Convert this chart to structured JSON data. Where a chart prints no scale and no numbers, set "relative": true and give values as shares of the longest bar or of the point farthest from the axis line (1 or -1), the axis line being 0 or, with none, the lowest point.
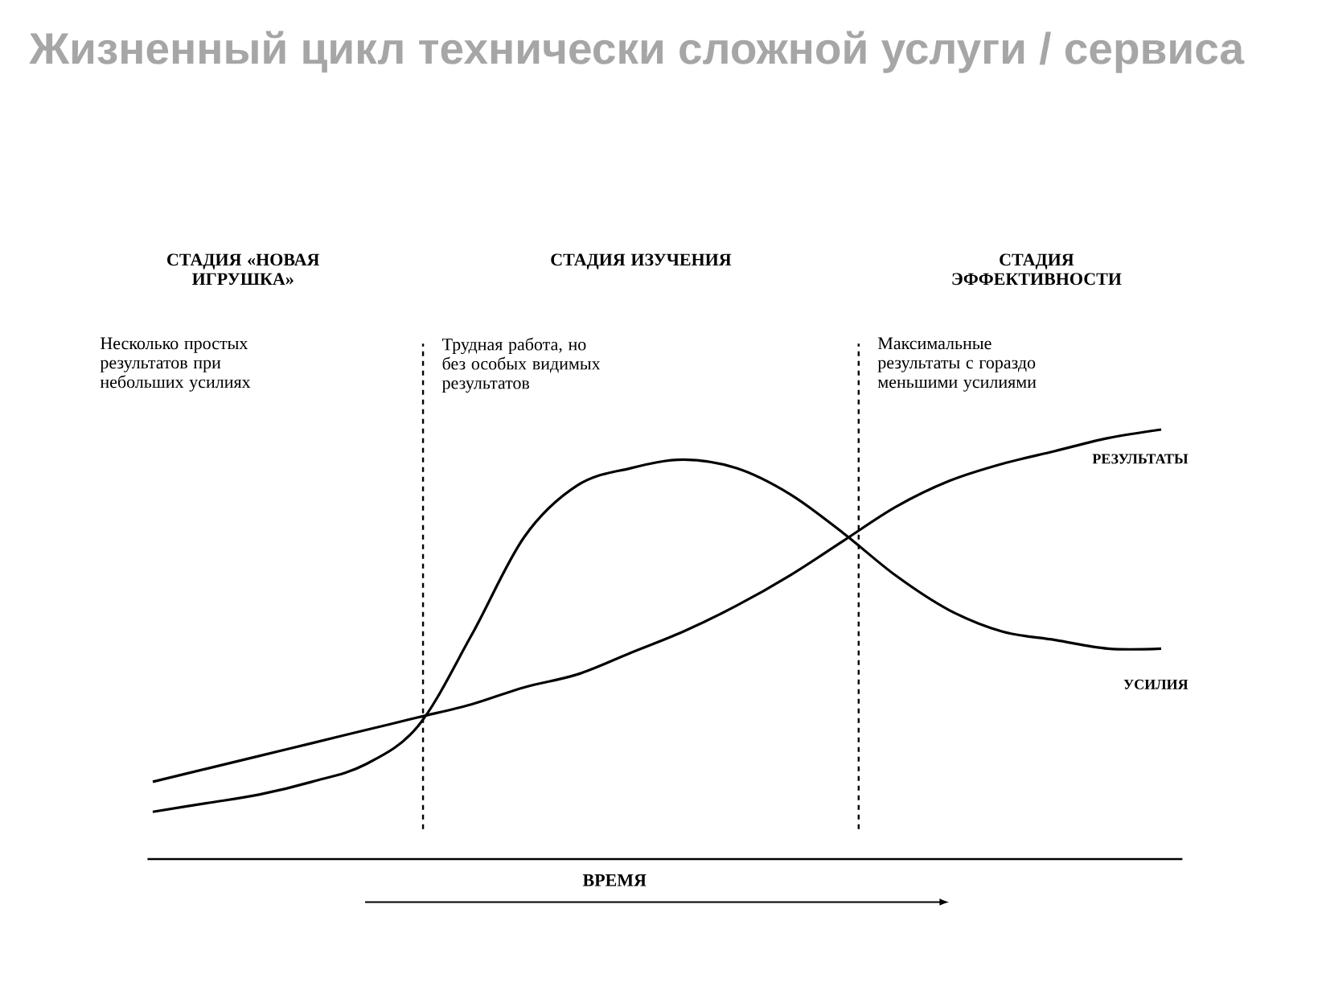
{
  "chart_data": {
    "type": "line",
    "relative": true,
    "title": "Жизненный цикл технически сложной услуги / сервиса",
    "xlabel": "ВРЕМЯ",
    "categories": [
      null,
      null,
      null,
      null,
      null,
      null,
      null,
      null,
      null,
      null,
      null,
      null,
      null,
      null,
      null,
      null,
      null,
      null,
      null,
      null
    ],
    "series": [
      {
        "name": "РЕЗУЛЬТАТЫ",
        "color": "#000000",
        "values": [
          0.18,
          0.21,
          0.24,
          0.27,
          0.3,
          0.33,
          0.36,
          0.4,
          0.43,
          0.48,
          0.53,
          0.59,
          0.66,
          0.74,
          0.82,
          0.88,
          0.92,
          0.95,
          0.98,
          1.0
        ]
      },
      {
        "name": "УСИЛИЯ",
        "color": "#000000",
        "values": [
          0.11,
          0.13,
          0.15,
          0.18,
          0.22,
          0.31,
          0.52,
          0.75,
          0.87,
          0.91,
          0.93,
          0.91,
          0.85,
          0.76,
          0.66,
          0.58,
          0.53,
          0.51,
          0.49,
          0.49
        ]
      }
    ],
    "annotations": [
      "СТАДИЯ «НОВАЯ ИГРУШКА»",
      "СТАДИЯ ИЗУЧЕНИЯ",
      "СТАДИЯ ЭФФЕКТИВНОСТИ",
      "Несколько простых результатов при небольших усилиях",
      "Трудная работа, но без особых видимых результатов",
      "Максимальные результаты с гораздо меньшими усилиями"
    ],
    "line_style": "solid"
  }
}
